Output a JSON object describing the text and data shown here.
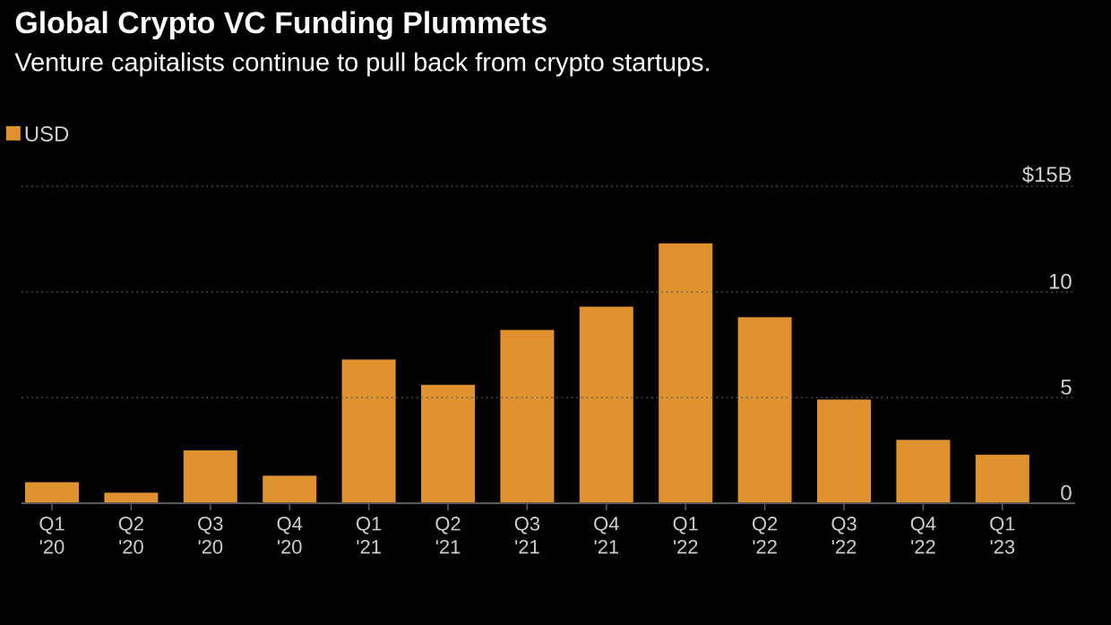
{
  "chart_data": {
    "type": "bar",
    "title": "Global Crypto VC Funding Plummets",
    "subtitle": "Venture capitalists continue to pull back from crypto startups.",
    "categories": [
      "Q1 '20",
      "Q2 '20",
      "Q3 '20",
      "Q4 '20",
      "Q1 '21",
      "Q2 '21",
      "Q3 '21",
      "Q4 '21",
      "Q1 '22",
      "Q2 '22",
      "Q3 '22",
      "Q4 '22",
      "Q1 '23"
    ],
    "series": [
      {
        "name": "USD",
        "color": "#e0922f",
        "values": [
          1.0,
          0.5,
          2.5,
          1.3,
          6.8,
          5.6,
          8.2,
          9.3,
          12.3,
          8.8,
          4.9,
          3.0,
          2.3
        ]
      }
    ],
    "ylim": [
      0,
      15
    ],
    "yticks": [
      0,
      5,
      10,
      {
        "value": 15,
        "label": "$15B"
      }
    ],
    "grid": "y",
    "legend": "top left"
  }
}
